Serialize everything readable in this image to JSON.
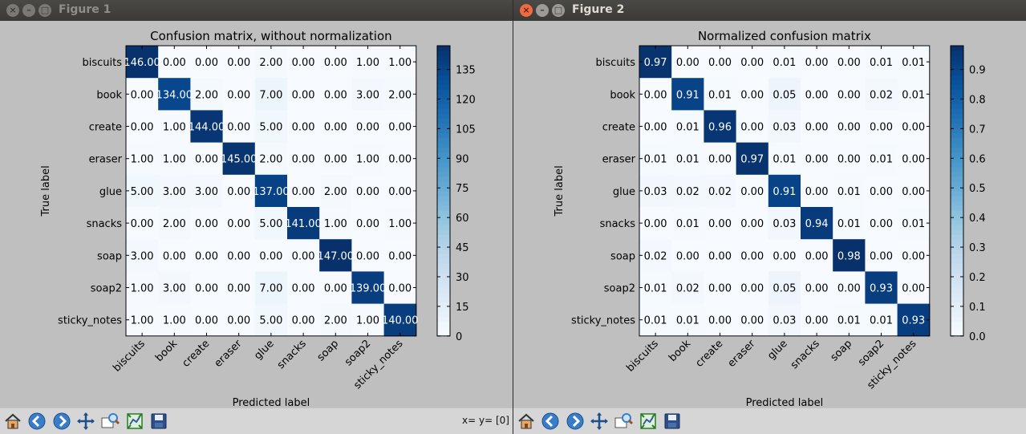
{
  "windows": [
    {
      "title": "Figure 1",
      "coords": "x= y= [0]",
      "chart_data": {
        "type": "heatmap",
        "title": "Confusion matrix, without normalization",
        "xlabel": "Predicted label",
        "ylabel": "True label",
        "categories": [
          "biscuits",
          "book",
          "create",
          "eraser",
          "glue",
          "snacks",
          "soap",
          "soap2",
          "sticky_notes"
        ],
        "values": [
          [
            146,
            0,
            0,
            0,
            2,
            0,
            0,
            1,
            1
          ],
          [
            0,
            134,
            2,
            0,
            7,
            0,
            0,
            3,
            2
          ],
          [
            0,
            1,
            144,
            0,
            5,
            0,
            0,
            0,
            0
          ],
          [
            1,
            1,
            0,
            145,
            2,
            0,
            0,
            1,
            0
          ],
          [
            5,
            3,
            3,
            0,
            137,
            0,
            2,
            0,
            0
          ],
          [
            0,
            2,
            0,
            0,
            5,
            141,
            1,
            0,
            1
          ],
          [
            3,
            0,
            0,
            0,
            0,
            0,
            147,
            0,
            0
          ],
          [
            1,
            3,
            0,
            0,
            7,
            0,
            0,
            139,
            0
          ],
          [
            1,
            1,
            0,
            0,
            5,
            0,
            2,
            1,
            140
          ]
        ],
        "value_format_decimals": 2,
        "vmin": 0,
        "vmax": 147,
        "colorbar_ticks": [
          "0",
          "15",
          "30",
          "45",
          "60",
          "75",
          "90",
          "105",
          "120",
          "135"
        ],
        "colorbar_tick_values": [
          0,
          15,
          30,
          45,
          60,
          75,
          90,
          105,
          120,
          135
        ],
        "colormap": "Blues"
      }
    },
    {
      "title": "Figure 2",
      "coords": "",
      "chart_data": {
        "type": "heatmap",
        "title": "Normalized confusion matrix",
        "xlabel": "Predicted label",
        "ylabel": "True label",
        "categories": [
          "biscuits",
          "book",
          "create",
          "eraser",
          "glue",
          "snacks",
          "soap",
          "soap2",
          "sticky_notes"
        ],
        "values": [
          [
            0.97,
            0.0,
            0.0,
            0.0,
            0.01,
            0.0,
            0.0,
            0.01,
            0.01
          ],
          [
            0.0,
            0.91,
            0.01,
            0.0,
            0.05,
            0.0,
            0.0,
            0.02,
            0.01
          ],
          [
            0.0,
            0.01,
            0.96,
            0.0,
            0.03,
            0.0,
            0.0,
            0.0,
            0.0
          ],
          [
            0.01,
            0.01,
            0.0,
            0.97,
            0.01,
            0.0,
            0.0,
            0.01,
            0.0
          ],
          [
            0.03,
            0.02,
            0.02,
            0.0,
            0.91,
            0.0,
            0.01,
            0.0,
            0.0
          ],
          [
            0.0,
            0.01,
            0.0,
            0.0,
            0.03,
            0.94,
            0.01,
            0.0,
            0.01
          ],
          [
            0.02,
            0.0,
            0.0,
            0.0,
            0.0,
            0.0,
            0.98,
            0.0,
            0.0
          ],
          [
            0.01,
            0.02,
            0.0,
            0.0,
            0.05,
            0.0,
            0.0,
            0.93,
            0.0
          ],
          [
            0.01,
            0.01,
            0.0,
            0.0,
            0.03,
            0.0,
            0.01,
            0.01,
            0.93
          ]
        ],
        "value_format_decimals": 2,
        "vmin": 0,
        "vmax": 0.98,
        "colorbar_ticks": [
          "0.0",
          "0.1",
          "0.2",
          "0.3",
          "0.4",
          "0.5",
          "0.6",
          "0.7",
          "0.8",
          "0.9"
        ],
        "colorbar_tick_values": [
          0,
          0.1,
          0.2,
          0.3,
          0.4,
          0.5,
          0.6,
          0.7,
          0.8,
          0.9
        ],
        "colormap": "Blues"
      }
    }
  ],
  "toolbar": {
    "icons": [
      "home-icon",
      "back-icon",
      "forward-icon",
      "pan-icon",
      "zoom-icon",
      "subplots-icon",
      "save-icon"
    ]
  }
}
